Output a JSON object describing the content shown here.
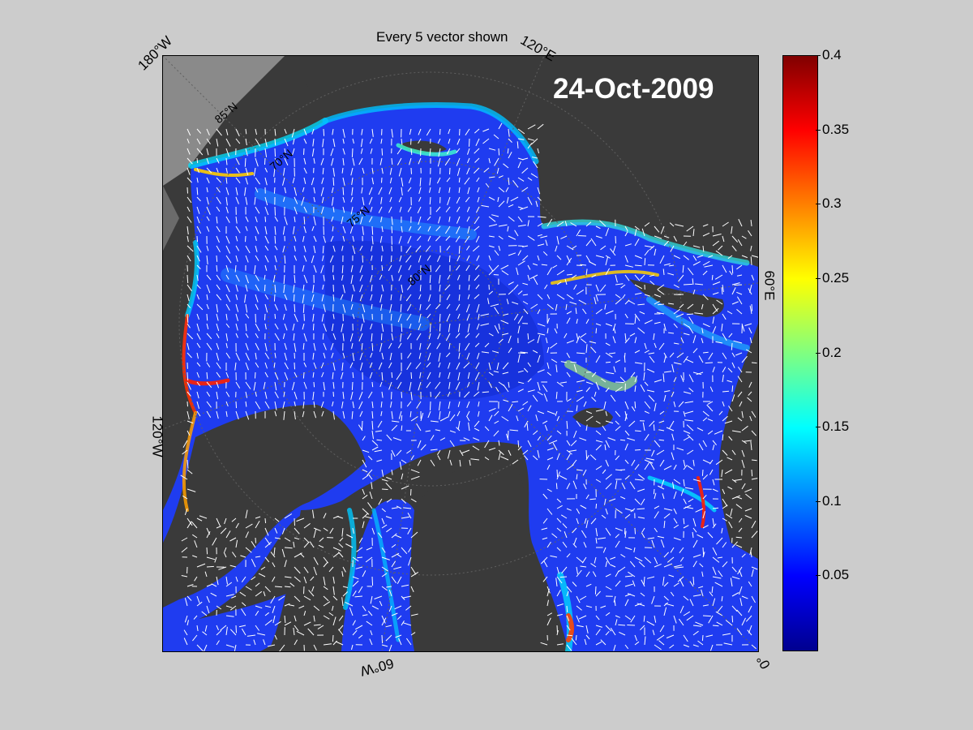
{
  "title": "Every 5 vector shown",
  "date": "24-Oct-2009",
  "longitude_labels": {
    "lon_180w": "180°W",
    "lon_120e": "120°E",
    "lon_60e": "60°E",
    "lon_120w": "120°W",
    "lon_60w": "60°W",
    "lon_0": "0°"
  },
  "latitude_labels": [
    "85°N",
    "70°N",
    "75°N",
    "80°N"
  ],
  "colorbar": {
    "colormap": "jet",
    "min": 0,
    "max": 0.4,
    "tick_labels": [
      "0.4",
      "0.35",
      "0.3",
      "0.25",
      "0.2",
      "0.15",
      "0.1",
      "0.05"
    ]
  },
  "colors": {
    "background": "#cccccc",
    "land": "#3a3a3a",
    "land_outside_grid": "#8a8a8a",
    "ice_low": "#1b3ff2",
    "vectors": "#ffffff"
  }
}
